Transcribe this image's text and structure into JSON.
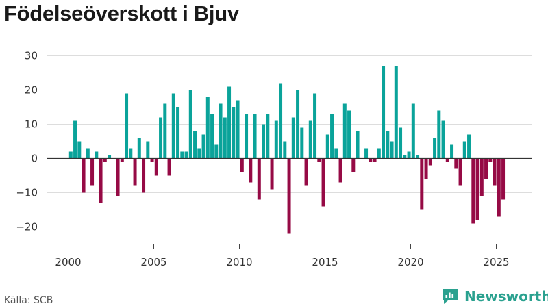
{
  "title": "Födelseöverskott i Bjuv",
  "source": "Källa: SCB",
  "brand": {
    "name": "Newsworthy",
    "icon": "newsworthy-logo-icon",
    "color": "#2aa18f"
  },
  "colors": {
    "positive": "#0aa39a",
    "negative": "#960a45",
    "grid": "#dddddd",
    "zero": "#333333"
  },
  "chart_data": {
    "type": "bar",
    "title": "Födelseöverskott i Bjuv",
    "xlabel": "",
    "ylabel": "",
    "x_unit": "quarter",
    "x_start": "2000 Q1",
    "x_ticks": [
      2000,
      2005,
      2010,
      2015,
      2020,
      2025
    ],
    "y_ticks": [
      30,
      20,
      10,
      0,
      -10,
      -20
    ],
    "ylim": [
      -24,
      32
    ],
    "grid": true,
    "values": [
      2,
      11,
      5,
      -10,
      3,
      -8,
      2,
      -13,
      -1,
      1,
      0,
      -11,
      -1,
      19,
      3,
      -8,
      6,
      -10,
      5,
      -1,
      -5,
      12,
      16,
      -5,
      19,
      15,
      2,
      2,
      20,
      8,
      3,
      7,
      18,
      13,
      4,
      16,
      12,
      21,
      15,
      17,
      -4,
      13,
      -7,
      13,
      -12,
      10,
      13,
      -9,
      11,
      22,
      5,
      -22,
      12,
      20,
      9,
      -8,
      11,
      19,
      -1,
      -14,
      7,
      13,
      3,
      -7,
      16,
      14,
      -4,
      8,
      0,
      3,
      -1,
      -1,
      3,
      27,
      8,
      5,
      27,
      9,
      1,
      2,
      16,
      1,
      -15,
      -6,
      -2,
      6,
      14,
      11,
      -1,
      4,
      -3,
      -8,
      5,
      7,
      -19,
      -18,
      -11,
      -6,
      -1,
      -8,
      -17,
      -12
    ]
  }
}
